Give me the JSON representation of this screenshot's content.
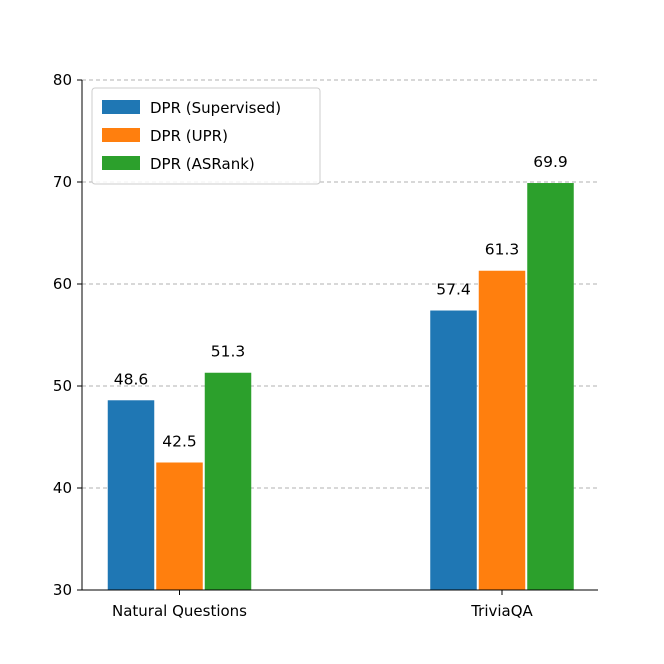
{
  "chart_data": {
    "type": "bar",
    "title": "",
    "xlabel": "",
    "ylabel": "",
    "ylim": [
      30,
      80
    ],
    "yticks": [
      30,
      40,
      50,
      60,
      70,
      80
    ],
    "grid": true,
    "legend_position": "top-left",
    "categories": [
      "Natural Questions",
      "TriviaQA"
    ],
    "series": [
      {
        "name": "DPR (Supervised)",
        "color": "#1f77b4",
        "values": [
          48.6,
          57.4
        ]
      },
      {
        "name": "DPR (UPR)",
        "color": "#ff7f0e",
        "values": [
          42.5,
          61.3
        ]
      },
      {
        "name": "DPR (ASRank)",
        "color": "#2ca02c",
        "values": [
          51.3,
          69.9
        ]
      }
    ]
  }
}
